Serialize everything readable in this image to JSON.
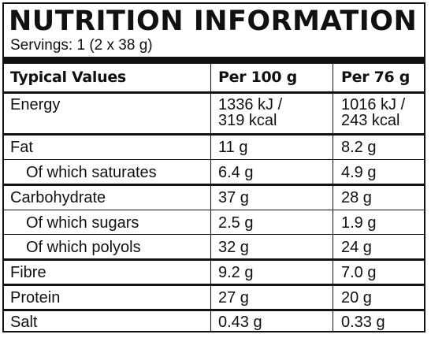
{
  "label": {
    "title": "NUTRITION INFORMATION",
    "servings": "Servings: 1 (2 x 38 g)",
    "headers": [
      "Typical Values",
      "Per 100 g",
      "Per 76 g"
    ],
    "rows": [
      {
        "name": "Energy",
        "per100_line1": "1336 kJ /",
        "per100_line2": "319 kcal",
        "perServing_line1": "1016 kJ /",
        "perServing_line2": "243 kcal"
      },
      {
        "name": "Fat",
        "per100": "11 g",
        "perServing": "8.2 g"
      },
      {
        "name": "Of which saturates",
        "per100": "6.4 g",
        "perServing": "4.9 g"
      },
      {
        "name": "Carbohydrate",
        "per100": "37 g",
        "perServing": "28 g"
      },
      {
        "name": "Of which sugars",
        "per100": "2.5 g",
        "perServing": "1.9 g"
      },
      {
        "name": "Of which polyols",
        "per100": "32 g",
        "perServing": "24 g"
      },
      {
        "name": "Fibre",
        "per100": "9.2 g",
        "perServing": "7.0 g"
      },
      {
        "name": "Protein",
        "per100": "27 g",
        "perServing": "20 g"
      },
      {
        "name": "Salt",
        "per100": "0.43 g",
        "perServing": "0.33 g"
      }
    ]
  }
}
